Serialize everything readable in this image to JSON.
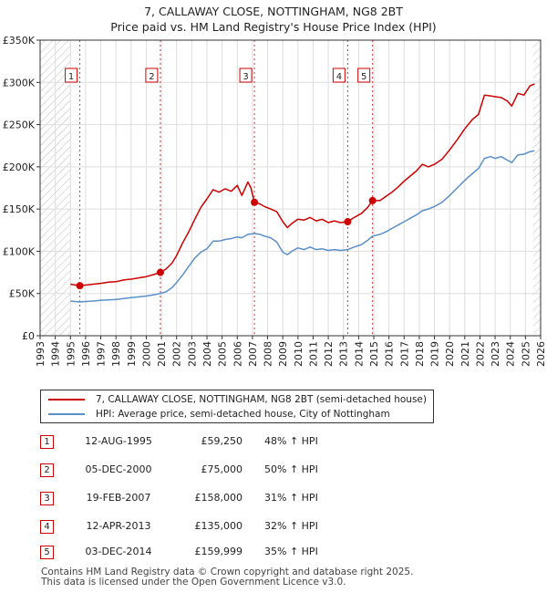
{
  "title_line1": "7, CALLAWAY CLOSE, NOTTINGHAM, NG8 2BT",
  "title_line2": "Price paid vs. HM Land Registry's House Price Index (HPI)",
  "colors": {
    "property": "#cc0000",
    "hpi": "#5b8fc9",
    "marker_box": "#cc0000",
    "axis": "#333333",
    "grid": "#dddddd"
  },
  "chart_data": {
    "type": "line",
    "title": "7, CALLAWAY CLOSE, NOTTINGHAM, NG8 2BT",
    "subtitle": "Price paid vs. HM Land Registry's House Price Index (HPI)",
    "xlabel": "",
    "ylabel": "",
    "xlim": [
      1993,
      2026
    ],
    "ylim": [
      0,
      350000
    ],
    "grid": true,
    "y_ticks": [
      {
        "value": 0,
        "label": "£0"
      },
      {
        "value": 50000,
        "label": "£50K"
      },
      {
        "value": 100000,
        "label": "£100K"
      },
      {
        "value": 150000,
        "label": "£150K"
      },
      {
        "value": 200000,
        "label": "£200K"
      },
      {
        "value": 250000,
        "label": "£250K"
      },
      {
        "value": 300000,
        "label": "£300K"
      },
      {
        "value": 350000,
        "label": "£350K"
      }
    ],
    "x_ticks": [
      "1993",
      "1994",
      "1995",
      "1996",
      "1997",
      "1998",
      "1999",
      "2000",
      "2001",
      "2002",
      "2003",
      "2004",
      "2005",
      "2006",
      "2007",
      "2008",
      "2009",
      "2010",
      "2011",
      "2012",
      "2013",
      "2014",
      "2015",
      "2016",
      "2017",
      "2018",
      "2019",
      "2020",
      "2021",
      "2022",
      "2023",
      "2024",
      "2025",
      "2026"
    ],
    "hatched_ranges": [
      [
        1993,
        1995.0
      ],
      [
        2025.5,
        2026
      ]
    ],
    "series": [
      {
        "name": "7, CALLAWAY CLOSE, NOTTINGHAM, NG8 2BT (semi-detached house)",
        "color": "#cc0000",
        "points": [
          [
            1995.0,
            61000
          ],
          [
            1995.6,
            59250
          ],
          [
            1996.0,
            60000
          ],
          [
            1996.5,
            61000
          ],
          [
            1997.0,
            62000
          ],
          [
            1997.5,
            63500
          ],
          [
            1998.0,
            64000
          ],
          [
            1998.5,
            66000
          ],
          [
            1999.0,
            67000
          ],
          [
            1999.5,
            68500
          ],
          [
            2000.0,
            70000
          ],
          [
            2000.5,
            72500
          ],
          [
            2000.93,
            75000
          ],
          [
            2001.3,
            79000
          ],
          [
            2001.7,
            86000
          ],
          [
            2002.0,
            95000
          ],
          [
            2002.4,
            110000
          ],
          [
            2002.8,
            123000
          ],
          [
            2003.2,
            138000
          ],
          [
            2003.6,
            152000
          ],
          [
            2004.0,
            162000
          ],
          [
            2004.4,
            173000
          ],
          [
            2004.8,
            170000
          ],
          [
            2005.2,
            174000
          ],
          [
            2005.6,
            171000
          ],
          [
            2006.0,
            178000
          ],
          [
            2006.3,
            166000
          ],
          [
            2006.7,
            182000
          ],
          [
            2006.9,
            175000
          ],
          [
            2007.13,
            158000
          ],
          [
            2007.5,
            156000
          ],
          [
            2007.8,
            153000
          ],
          [
            2008.2,
            150000
          ],
          [
            2008.6,
            147000
          ],
          [
            2009.0,
            135000
          ],
          [
            2009.3,
            128000
          ],
          [
            2009.6,
            133000
          ],
          [
            2010.0,
            138000
          ],
          [
            2010.4,
            137000
          ],
          [
            2010.8,
            140000
          ],
          [
            2011.2,
            136000
          ],
          [
            2011.6,
            138000
          ],
          [
            2012.0,
            134000
          ],
          [
            2012.4,
            136000
          ],
          [
            2012.8,
            134000
          ],
          [
            2013.28,
            135000
          ],
          [
            2013.7,
            140000
          ],
          [
            2014.2,
            145000
          ],
          [
            2014.6,
            152000
          ],
          [
            2014.92,
            159999
          ],
          [
            2015.4,
            160000
          ],
          [
            2015.8,
            165000
          ],
          [
            2016.2,
            170000
          ],
          [
            2016.6,
            176000
          ],
          [
            2017.0,
            183000
          ],
          [
            2017.4,
            189000
          ],
          [
            2017.8,
            195000
          ],
          [
            2018.2,
            203000
          ],
          [
            2018.6,
            200000
          ],
          [
            2019.0,
            203000
          ],
          [
            2019.5,
            209000
          ],
          [
            2020.0,
            220000
          ],
          [
            2020.5,
            232000
          ],
          [
            2021.0,
            245000
          ],
          [
            2021.5,
            256000
          ],
          [
            2021.9,
            262000
          ],
          [
            2022.3,
            285000
          ],
          [
            2022.7,
            284000
          ],
          [
            2023.0,
            283000
          ],
          [
            2023.4,
            282000
          ],
          [
            2023.8,
            278000
          ],
          [
            2024.1,
            272000
          ],
          [
            2024.5,
            287000
          ],
          [
            2024.9,
            285000
          ],
          [
            2025.3,
            296000
          ],
          [
            2025.6,
            298000
          ]
        ]
      },
      {
        "name": "HPI: Average price, semi-detached house, City of Nottingham",
        "color": "#5b8fc9",
        "points": [
          [
            1995.0,
            41000
          ],
          [
            1995.6,
            40000
          ],
          [
            1996.0,
            40500
          ],
          [
            1996.5,
            41000
          ],
          [
            1997.0,
            42000
          ],
          [
            1997.5,
            42500
          ],
          [
            1998.0,
            43000
          ],
          [
            1998.5,
            44000
          ],
          [
            1999.0,
            45000
          ],
          [
            1999.5,
            46000
          ],
          [
            2000.0,
            47000
          ],
          [
            2000.5,
            48500
          ],
          [
            2000.93,
            50000
          ],
          [
            2001.3,
            52000
          ],
          [
            2001.7,
            57000
          ],
          [
            2002.0,
            63000
          ],
          [
            2002.4,
            72000
          ],
          [
            2002.8,
            82000
          ],
          [
            2003.2,
            92000
          ],
          [
            2003.6,
            99000
          ],
          [
            2004.0,
            103000
          ],
          [
            2004.4,
            112000
          ],
          [
            2004.8,
            112000
          ],
          [
            2005.2,
            114000
          ],
          [
            2005.6,
            115000
          ],
          [
            2006.0,
            117000
          ],
          [
            2006.3,
            116000
          ],
          [
            2006.7,
            120000
          ],
          [
            2007.13,
            121000
          ],
          [
            2007.5,
            120000
          ],
          [
            2007.8,
            118000
          ],
          [
            2008.2,
            116000
          ],
          [
            2008.6,
            111000
          ],
          [
            2009.0,
            99000
          ],
          [
            2009.3,
            96000
          ],
          [
            2009.6,
            100000
          ],
          [
            2010.0,
            104000
          ],
          [
            2010.4,
            102000
          ],
          [
            2010.8,
            105000
          ],
          [
            2011.2,
            102000
          ],
          [
            2011.6,
            103000
          ],
          [
            2012.0,
            101000
          ],
          [
            2012.4,
            102000
          ],
          [
            2012.8,
            101000
          ],
          [
            2013.28,
            102000
          ],
          [
            2013.7,
            105000
          ],
          [
            2014.2,
            108000
          ],
          [
            2014.6,
            113000
          ],
          [
            2014.92,
            118000
          ],
          [
            2015.4,
            120000
          ],
          [
            2015.8,
            123000
          ],
          [
            2016.2,
            127000
          ],
          [
            2016.6,
            131000
          ],
          [
            2017.0,
            135000
          ],
          [
            2017.4,
            139000
          ],
          [
            2017.8,
            143000
          ],
          [
            2018.2,
            148000
          ],
          [
            2018.6,
            150000
          ],
          [
            2019.0,
            153000
          ],
          [
            2019.5,
            158000
          ],
          [
            2020.0,
            166000
          ],
          [
            2020.5,
            175000
          ],
          [
            2021.0,
            184000
          ],
          [
            2021.5,
            192000
          ],
          [
            2021.9,
            198000
          ],
          [
            2022.3,
            210000
          ],
          [
            2022.7,
            212000
          ],
          [
            2023.0,
            210000
          ],
          [
            2023.4,
            212000
          ],
          [
            2023.8,
            208000
          ],
          [
            2024.1,
            205000
          ],
          [
            2024.5,
            214000
          ],
          [
            2024.9,
            215000
          ],
          [
            2025.3,
            218000
          ],
          [
            2025.6,
            219000
          ]
        ]
      }
    ],
    "transactions": [
      {
        "num": "1",
        "x": 1995.62,
        "price": 59250,
        "date": "12-AUG-1995",
        "price_label": "£59,250",
        "hpi_label": "48% ↑ HPI"
      },
      {
        "num": "2",
        "x": 2000.93,
        "price": 75000,
        "date": "05-DEC-2000",
        "price_label": "£75,000",
        "hpi_label": "50% ↑ HPI"
      },
      {
        "num": "3",
        "x": 2007.13,
        "price": 158000,
        "date": "19-FEB-2007",
        "price_label": "£158,000",
        "hpi_label": "31% ↑ HPI"
      },
      {
        "num": "4",
        "x": 2013.28,
        "price": 135000,
        "date": "12-APR-2013",
        "price_label": "£135,000",
        "hpi_label": "32% ↑ HPI"
      },
      {
        "num": "5",
        "x": 2014.92,
        "price": 159999,
        "date": "03-DEC-2014",
        "price_label": "£159,999",
        "hpi_label": "35% ↑ HPI"
      }
    ]
  },
  "legend": {
    "property_label": "7, CALLAWAY CLOSE, NOTTINGHAM, NG8 2BT (semi-detached house)",
    "hpi_label": "HPI: Average price, semi-detached house, City of Nottingham"
  },
  "footer": {
    "line1": "Contains HM Land Registry data © Crown copyright and database right 2025.",
    "line2": "This data is licensed under the Open Government Licence v3.0."
  }
}
